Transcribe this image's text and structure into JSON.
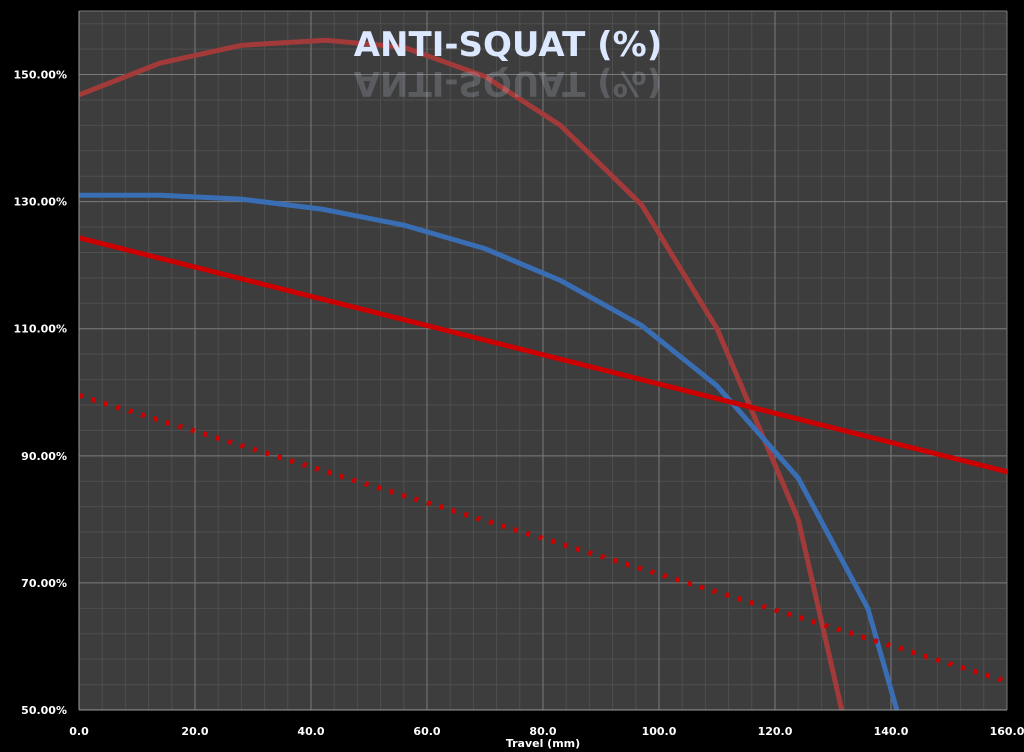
{
  "chart_data": {
    "type": "line",
    "title": "ANTI-SQUAT (%)",
    "xlabel": "Travel (mm)",
    "ylabel": "",
    "xlim": [
      0,
      160
    ],
    "ylim": [
      50,
      160
    ],
    "x_ticks": [
      0,
      20,
      40,
      60,
      80,
      100,
      120,
      140,
      160
    ],
    "x_tick_labels": [
      "0.0",
      "20.0",
      "40.0",
      "60.0",
      "80.0",
      "100.0",
      "120.0",
      "140.0",
      "160.0"
    ],
    "y_ticks": [
      50,
      70,
      90,
      110,
      130,
      150
    ],
    "y_tick_labels": [
      "50.00%",
      "70.00%",
      "90.00%",
      "110.00%",
      "130.00%",
      "150.00%"
    ],
    "grid": true,
    "legend": "none",
    "series": [
      {
        "color": "#a33a3a",
        "style": "solid",
        "points": [
          [
            0,
            146.8
          ],
          [
            14,
            151.8
          ],
          [
            28,
            154.6
          ],
          [
            42.5,
            155.4
          ],
          [
            56,
            154.3
          ],
          [
            70,
            149.7
          ],
          [
            83,
            142
          ],
          [
            97,
            129.5
          ],
          [
            110,
            110
          ],
          [
            124,
            80
          ],
          [
            131.5,
            50
          ]
        ]
      },
      {
        "color": "#3a6eb4",
        "style": "solid",
        "points": [
          [
            0,
            131
          ],
          [
            14,
            131
          ],
          [
            28,
            130.4
          ],
          [
            42,
            128.8
          ],
          [
            56,
            126.3
          ],
          [
            70,
            122.6
          ],
          [
            83,
            117.6
          ],
          [
            97,
            110.5
          ],
          [
            110,
            101
          ],
          [
            124,
            86.5
          ],
          [
            136,
            66
          ],
          [
            141,
            50
          ]
        ]
      },
      {
        "color": "#cc0000",
        "style": "solid",
        "points": [
          [
            0,
            124.3
          ],
          [
            160,
            87.5
          ]
        ]
      },
      {
        "color": "#cc0000",
        "style": "dotted",
        "points": [
          [
            0,
            99.5
          ],
          [
            160,
            54.5
          ]
        ]
      }
    ]
  }
}
